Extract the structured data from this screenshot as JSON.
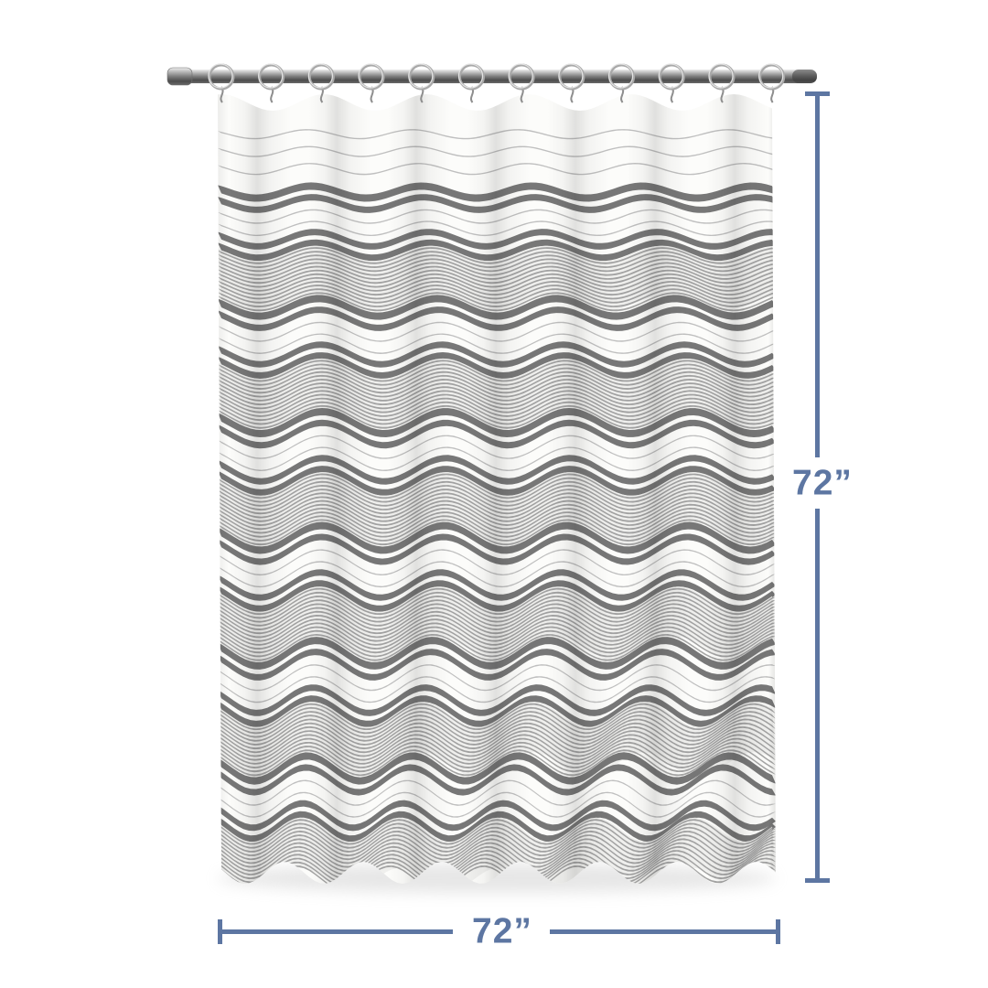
{
  "scene": {
    "background": "#ffffff",
    "accent": "#5d76a2"
  },
  "product": {
    "description": "White fabric shower curtain with gray horizontal stripes, hanging from a metal rod with hooks",
    "ring_count": 12,
    "colors": {
      "fabric_base": "#fcfcfa",
      "bold_stripe": "#6b6b6b",
      "fine_stripe": "#8d8d8d",
      "fine_band_base": "#efefed",
      "pinstripe": "#b4b4b4",
      "rod_dark": "#3c3c3c",
      "ring_silver": "#a8a8a8"
    }
  },
  "dimensions": {
    "height_label": "72”",
    "width_label": "72”"
  }
}
